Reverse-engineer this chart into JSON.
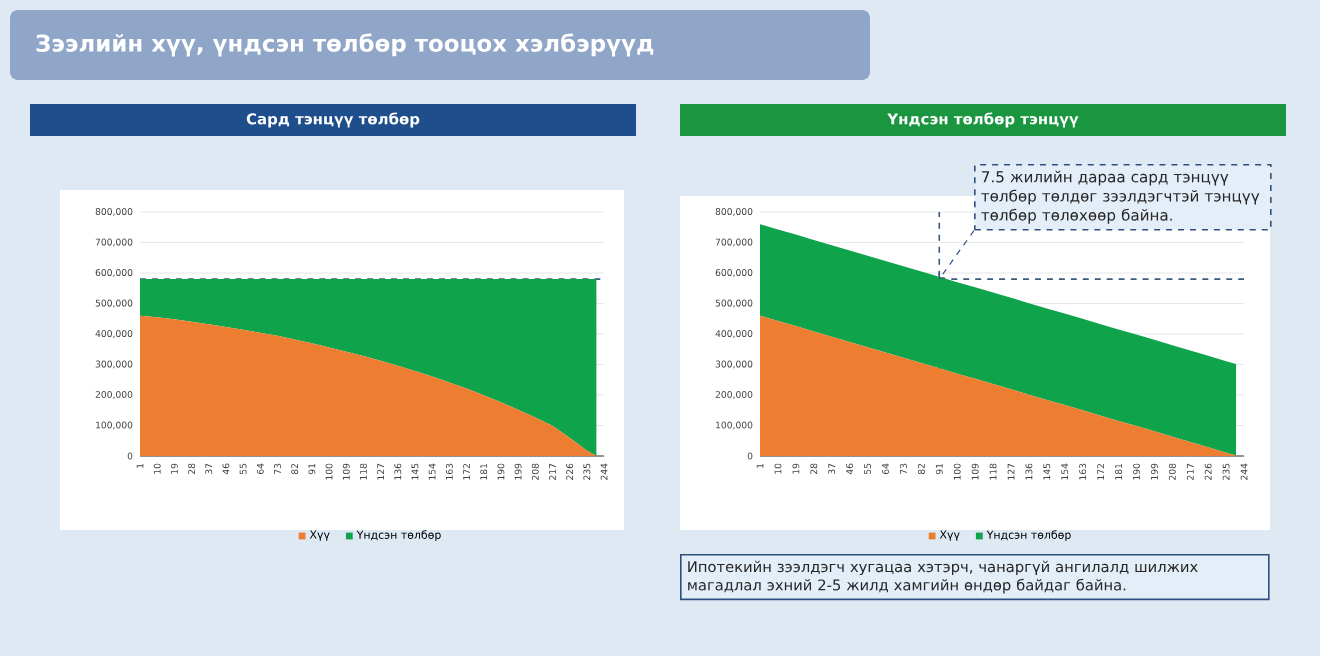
{
  "chart_data": [
    {
      "type": "area",
      "title": "Сард тэнцүү төлбөр",
      "stacked": true,
      "x": [
        1,
        10,
        19,
        28,
        37,
        46,
        55,
        64,
        73,
        82,
        91,
        100,
        109,
        118,
        127,
        136,
        145,
        154,
        163,
        172,
        181,
        190,
        199,
        208,
        217,
        226,
        235,
        240
      ],
      "series": [
        {
          "name": "Хүү",
          "color": "#ed7d31",
          "values": [
            460000,
            455000,
            448000,
            440000,
            432000,
            423000,
            414000,
            404000,
            394000,
            382000,
            370000,
            356000,
            342000,
            328000,
            312000,
            296000,
            279000,
            261000,
            241000,
            221000,
            199000,
            176000,
            152000,
            126000,
            99000,
            60000,
            18000,
            0
          ]
        },
        {
          "name": "Үндсэн төлбөр",
          "color": "#0fa34b",
          "values": [
            120000,
            125000,
            132000,
            140000,
            148000,
            157000,
            166000,
            176000,
            186000,
            198000,
            210000,
            224000,
            238000,
            252000,
            268000,
            284000,
            301000,
            319000,
            339000,
            359000,
            381000,
            404000,
            428000,
            454000,
            481000,
            520000,
            562000,
            580000
          ]
        }
      ],
      "xlim": [
        1,
        244
      ],
      "xticks": [
        1,
        10,
        19,
        28,
        37,
        46,
        55,
        64,
        73,
        82,
        91,
        100,
        109,
        118,
        127,
        136,
        145,
        154,
        163,
        172,
        181,
        190,
        199,
        208,
        217,
        226,
        235,
        244
      ],
      "ylim": [
        0,
        800000
      ],
      "yticks": [
        {
          "value": 0,
          "label": "0"
        },
        {
          "value": 100000,
          "label": "100,000"
        },
        {
          "value": 200000,
          "label": "200,000"
        },
        {
          "value": 300000,
          "label": "300,000"
        },
        {
          "value": 400000,
          "label": "400,000"
        },
        {
          "value": 500000,
          "label": "500,000"
        },
        {
          "value": 600000,
          "label": "600,000"
        },
        {
          "value": 700000,
          "label": "700,000"
        },
        {
          "value": 800000,
          "label": "800,000"
        }
      ],
      "grid": "y",
      "legend": "bottom",
      "ref_lines": [
        {
          "axis": "y",
          "value": 580000,
          "color": "#3c5a80",
          "line_style": "dashed"
        }
      ],
      "annotations": [
        "Зээлийн хүү, үндсэн төлбөр тооцох хэлбэрүүд"
      ]
    },
    {
      "type": "area",
      "title": "Үндсэн төлбөр тэнцүү",
      "stacked": true,
      "x": [
        1,
        10,
        19,
        28,
        37,
        46,
        55,
        64,
        73,
        82,
        91,
        100,
        109,
        118,
        127,
        136,
        145,
        154,
        163,
        172,
        181,
        190,
        199,
        208,
        217,
        226,
        235,
        240
      ],
      "series": [
        {
          "name": "Хүү",
          "color": "#ed7d31",
          "values": [
            460000,
            443000,
            426000,
            408000,
            391000,
            374000,
            357000,
            339000,
            322000,
            305000,
            288000,
            270000,
            253000,
            236000,
            219000,
            201000,
            184000,
            167000,
            150000,
            132000,
            115000,
            98000,
            81000,
            63000,
            46000,
            29000,
            11000,
            2000
          ]
        },
        {
          "name": "Үндсэн төлбөр",
          "color": "#0fa34b",
          "values": [
            300000,
            300000,
            300000,
            300000,
            300000,
            300000,
            300000,
            300000,
            300000,
            300000,
            300000,
            300000,
            300000,
            300000,
            300000,
            300000,
            300000,
            300000,
            300000,
            300000,
            300000,
            300000,
            300000,
            300000,
            300000,
            300000,
            300000,
            300000
          ]
        }
      ],
      "xlim": [
        1,
        244
      ],
      "xticks": [
        1,
        10,
        19,
        28,
        37,
        46,
        55,
        64,
        73,
        82,
        91,
        100,
        109,
        118,
        127,
        136,
        145,
        154,
        163,
        172,
        181,
        190,
        199,
        208,
        217,
        226,
        235,
        244
      ],
      "ylim": [
        0,
        800000
      ],
      "yticks": [
        {
          "value": 0,
          "label": "0"
        },
        {
          "value": 100000,
          "label": "100,000"
        },
        {
          "value": 200000,
          "label": "200,000"
        },
        {
          "value": 300000,
          "label": "300,000"
        },
        {
          "value": 400000,
          "label": "400,000"
        },
        {
          "value": 500000,
          "label": "500,000"
        },
        {
          "value": 600000,
          "label": "600,000"
        },
        {
          "value": 700000,
          "label": "700,000"
        },
        {
          "value": 800000,
          "label": "800,000"
        }
      ],
      "grid": "y",
      "legend": "bottom",
      "ref_lines": [
        {
          "axis": "y",
          "value": 580000,
          "color": "#3c5a80",
          "line_style": "dashed"
        },
        {
          "axis": "x",
          "value": 91,
          "color": "#3c5a80",
          "line_style": "dashed"
        }
      ],
      "annotations": [
        {
          "text": "7.5 жилийн дараа сард тэнцүү төлбөр төлдөг зээлдэгчтэй тэнцүү төлбөр төлөхөөр байна.",
          "x": 91,
          "y": 580000
        },
        "Ипотекийн зээлдэгч хугацаа хэтэрч, чанаргүй ангилалд шилжих магадлал эхний 2-5 жилд хамгийн өндөр байдаг байна."
      ]
    }
  ]
}
